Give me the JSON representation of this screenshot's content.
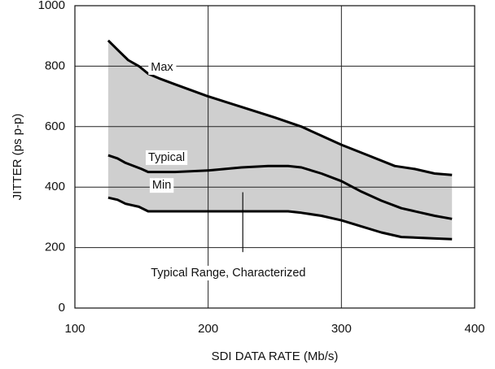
{
  "chart_data": {
    "type": "line",
    "xlabel": "SDI DATA RATE (Mb/s)",
    "ylabel": "JITTER (ps p-p)",
    "xlim": [
      100,
      400
    ],
    "ylim": [
      0,
      1000
    ],
    "x_ticks": [
      100,
      200,
      300,
      400
    ],
    "y_ticks": [
      0,
      200,
      400,
      600,
      800,
      1000
    ],
    "grid": true,
    "series": [
      {
        "name": "Max",
        "points": [
          [
            125,
            885
          ],
          [
            133,
            850
          ],
          [
            140,
            820
          ],
          [
            148,
            800
          ],
          [
            155,
            775
          ],
          [
            163,
            760
          ],
          [
            175,
            740
          ],
          [
            200,
            700
          ],
          [
            225,
            665
          ],
          [
            250,
            630
          ],
          [
            270,
            600
          ],
          [
            285,
            570
          ],
          [
            300,
            540
          ],
          [
            320,
            505
          ],
          [
            340,
            470
          ],
          [
            355,
            460
          ],
          [
            370,
            445
          ],
          [
            383,
            440
          ]
        ]
      },
      {
        "name": "Typical",
        "points": [
          [
            125,
            505
          ],
          [
            132,
            495
          ],
          [
            138,
            480
          ],
          [
            150,
            460
          ],
          [
            155,
            450
          ],
          [
            175,
            450
          ],
          [
            200,
            455
          ],
          [
            225,
            465
          ],
          [
            245,
            470
          ],
          [
            260,
            470
          ],
          [
            270,
            465
          ],
          [
            285,
            445
          ],
          [
            300,
            420
          ],
          [
            315,
            385
          ],
          [
            330,
            355
          ],
          [
            345,
            330
          ],
          [
            370,
            305
          ],
          [
            383,
            295
          ]
        ]
      },
      {
        "name": "Min",
        "points": [
          [
            125,
            365
          ],
          [
            132,
            358
          ],
          [
            138,
            345
          ],
          [
            148,
            335
          ],
          [
            155,
            320
          ],
          [
            175,
            320
          ],
          [
            200,
            320
          ],
          [
            225,
            320
          ],
          [
            245,
            320
          ],
          [
            260,
            320
          ],
          [
            270,
            315
          ],
          [
            285,
            305
          ],
          [
            300,
            290
          ],
          [
            315,
            270
          ],
          [
            330,
            250
          ],
          [
            345,
            235
          ],
          [
            370,
            230
          ],
          [
            383,
            228
          ]
        ]
      }
    ],
    "shaded_band": {
      "between": [
        "Max",
        "Min"
      ],
      "color": "#cfcfcf"
    },
    "annotations": [
      {
        "text": "Max",
        "x": 157,
        "y": 795
      },
      {
        "text": "Typical",
        "x": 155,
        "y": 497
      },
      {
        "text": "Min",
        "x": 158,
        "y": 405
      },
      {
        "text": "Typical Range, Characterized",
        "x": 157,
        "y": 115
      }
    ],
    "pointer": {
      "x": 226,
      "y_from": 383,
      "y_to": 185
    }
  }
}
